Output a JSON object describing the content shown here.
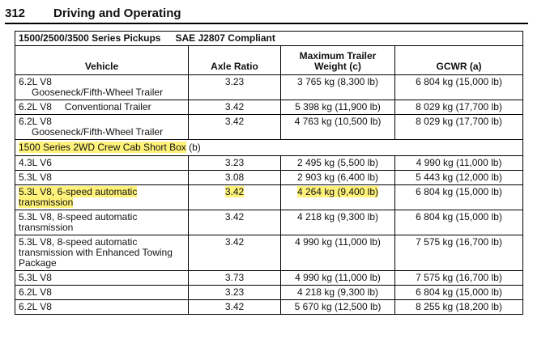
{
  "page": {
    "number": "312",
    "title": "Driving and Operating"
  },
  "table": {
    "caption_series": "1500/2500/3500 Series Pickups",
    "caption_standard": "SAE J2807 Compliant",
    "headers": {
      "vehicle": "Vehicle",
      "axle_ratio": "Axle Ratio",
      "max_trailer_weight": "Maximum Trailer Weight (c)",
      "gcwr": "GCWR (a)"
    },
    "rows_top": [
      {
        "engine": "6.2L V8",
        "desc": "Gooseneck/Fifth-Wheel Trailer",
        "axle": "3.23",
        "weight": "3 765 kg (8,300 lb)",
        "gcwr": "6 804 kg (15,000 lb)"
      },
      {
        "engine": "6.2L V8",
        "desc": "Conventional Trailer",
        "axle": "3.42",
        "weight": "5 398 kg (11,900 lb)",
        "gcwr": "8 029 kg (17,700 lb)"
      },
      {
        "engine": "6.2L V8",
        "desc": "Gooseneck/Fifth-Wheel Trailer",
        "axle": "3.42",
        "weight": "4 763 kg (10,500 lb)",
        "gcwr": "8 029 kg (17,700 lb)"
      }
    ],
    "section": {
      "label": "1500 Series 2WD Crew Cab Short Box",
      "note": "(b)"
    },
    "rows_bottom": [
      {
        "vehicle": "4.3L V6",
        "axle": "3.23",
        "weight": "2 495 kg (5,500 lb)",
        "gcwr": "4 990 kg (11,000 lb)"
      },
      {
        "vehicle": "5.3L V8",
        "axle": "3.08",
        "weight": "2 903 kg (6,400 lb)",
        "gcwr": "5 443 kg (12,000 lb)"
      },
      {
        "vehicle": "5.3L V8, 6-speed automatic transmission",
        "axle": "3.42",
        "weight": "4 264 kg (9,400 lb)",
        "gcwr": "6 804 kg (15,000 lb)"
      },
      {
        "vehicle": "5.3L V8, 8-speed automatic transmission",
        "axle": "3.42",
        "weight": "4 218 kg (9,300 lb)",
        "gcwr": "6 804 kg (15,000 lb)"
      },
      {
        "vehicle": "5.3L V8, 8-speed automatic transmission with Enhanced Towing Package",
        "axle": "3.42",
        "weight": "4 990 kg (11,000 lb)",
        "gcwr": "7 575 kg (16,700 lb)"
      },
      {
        "vehicle": "5.3L V8",
        "axle": "3.73",
        "weight": "4 990 kg (11,000 lb)",
        "gcwr": "7 575 kg (16,700 lb)"
      },
      {
        "vehicle": "6.2L V8",
        "axle": "3.23",
        "weight": "4 218 kg (9,300 lb)",
        "gcwr": "6 804 kg (15,000 lb)"
      },
      {
        "vehicle": "6.2L V8",
        "axle": "3.42",
        "weight": "5 670 kg (12,500 lb)",
        "gcwr": "8 255 kg (18,200 lb)"
      }
    ]
  },
  "highlight_color": "#fff27a"
}
